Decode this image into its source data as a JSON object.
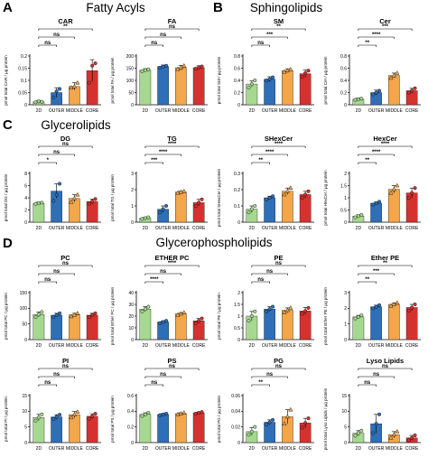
{
  "sections": [
    {
      "letter": "A",
      "title": "Fatty Acyls"
    },
    {
      "letter": "B",
      "title": "Sphingolipids"
    },
    {
      "letter": "C",
      "title": "Glycerolipids"
    },
    {
      "letter": "D",
      "title": "Glycerophospholipids"
    }
  ],
  "colors": {
    "2D": "#a6d98f",
    "OUTER": "#2e6fb7",
    "MIDDLE": "#f4a64a",
    "CORE": "#d5322f"
  },
  "chart_data": [
    {
      "type": "bar",
      "title": "CAR",
      "ylabel": "pmol total CAR / µg protein",
      "categories": [
        "2D",
        "OUTER",
        "MIDDLE",
        "CORE"
      ],
      "values": [
        0.012,
        0.05,
        0.075,
        0.14
      ],
      "errors": [
        0.006,
        0.02,
        0.015,
        0.045
      ],
      "ylim": [
        0,
        0.2
      ],
      "yticks": [
        0,
        0.05,
        0.1,
        0.15,
        0.2
      ],
      "points": [
        [
          0.01,
          0.014,
          0.012
        ],
        [
          0.03,
          0.055,
          0.065
        ],
        [
          0.07,
          0.075,
          0.09
        ],
        [
          0.09,
          0.16,
          0.17
        ]
      ],
      "comparisons": [
        {
          "a": 0,
          "b": 3,
          "label": "**"
        },
        {
          "a": 0,
          "b": 2,
          "label": "ns"
        },
        {
          "a": 0,
          "b": 1,
          "label": "ns"
        }
      ]
    },
    {
      "type": "bar",
      "title": "FA",
      "ylabel": "pmol total FA / µg protein",
      "categories": [
        "2D",
        "OUTER",
        "MIDDLE",
        "CORE"
      ],
      "values": [
        142,
        157,
        152,
        152
      ],
      "errors": [
        6,
        6,
        10,
        8
      ],
      "ylim": [
        0,
        200
      ],
      "yticks": [
        0,
        50,
        100,
        150,
        200
      ],
      "points": [
        [
          138,
          142,
          145
        ],
        [
          152,
          157,
          160
        ],
        [
          146,
          152,
          160
        ],
        [
          148,
          152,
          157
        ]
      ],
      "comparisons": [
        {
          "a": 0,
          "b": 3,
          "label": "ns"
        },
        {
          "a": 0,
          "b": 2,
          "label": "ns"
        },
        {
          "a": 0,
          "b": 1,
          "label": "ns"
        }
      ]
    },
    {
      "type": "bar",
      "title": "SM",
      "ylabel": "pmol total SM / µg protein",
      "categories": [
        "2D",
        "OUTER",
        "MIDDLE",
        "CORE"
      ],
      "values": [
        0.34,
        0.42,
        0.56,
        0.51
      ],
      "errors": [
        0.05,
        0.04,
        0.03,
        0.06
      ],
      "ylim": [
        0,
        0.8
      ],
      "yticks": [
        0,
        0.2,
        0.4,
        0.6,
        0.8
      ],
      "points": [
        [
          0.28,
          0.34,
          0.4
        ],
        [
          0.4,
          0.42,
          0.45
        ],
        [
          0.54,
          0.56,
          0.58
        ],
        [
          0.46,
          0.52,
          0.56
        ]
      ],
      "comparisons": [
        {
          "a": 0,
          "b": 3,
          "label": "**"
        },
        {
          "a": 0,
          "b": 2,
          "label": "***"
        },
        {
          "a": 0,
          "b": 1,
          "label": "ns"
        }
      ]
    },
    {
      "type": "bar",
      "title": "Cer",
      "ylabel": "pmol total Cer / µg protein",
      "categories": [
        "2D",
        "OUTER",
        "MIDDLE",
        "CORE"
      ],
      "values": [
        0.09,
        0.2,
        0.48,
        0.23
      ],
      "errors": [
        0.02,
        0.04,
        0.04,
        0.04
      ],
      "ylim": [
        0,
        0.8
      ],
      "yticks": [
        0,
        0.2,
        0.4,
        0.6,
        0.8
      ],
      "points": [
        [
          0.08,
          0.09,
          0.1
        ],
        [
          0.17,
          0.2,
          0.23
        ],
        [
          0.44,
          0.48,
          0.52
        ],
        [
          0.2,
          0.23,
          0.27
        ]
      ],
      "comparisons": [
        {
          "a": 0,
          "b": 3,
          "label": "***"
        },
        {
          "a": 0,
          "b": 2,
          "label": "****"
        },
        {
          "a": 0,
          "b": 1,
          "label": "**"
        }
      ]
    },
    {
      "type": "bar",
      "title": "DG",
      "ylabel": "pmol total DG / µg protein",
      "categories": [
        "2D",
        "OUTER",
        "MIDDLE",
        "CORE"
      ],
      "values": [
        3.1,
        5.1,
        3.9,
        3.4
      ],
      "errors": [
        0.2,
        1.2,
        0.6,
        0.4
      ],
      "ylim": [
        0,
        8
      ],
      "yticks": [
        0,
        2,
        4,
        6,
        8
      ],
      "points": [
        [
          3.0,
          3.1,
          3.2
        ],
        [
          3.5,
          4.5,
          6.3
        ],
        [
          3.3,
          3.9,
          4.5
        ],
        [
          3.0,
          3.4,
          3.8
        ]
      ],
      "comparisons": [
        {
          "a": 0,
          "b": 3,
          "label": "ns"
        },
        {
          "a": 0,
          "b": 2,
          "label": "ns"
        },
        {
          "a": 0,
          "b": 1,
          "label": "*"
        }
      ]
    },
    {
      "type": "bar",
      "title": "TG",
      "ylabel": "pmol total TG / µg protein",
      "categories": [
        "2D",
        "OUTER",
        "MIDDLE",
        "CORE"
      ],
      "values": [
        0.25,
        0.8,
        1.85,
        1.2
      ],
      "errors": [
        0.05,
        0.2,
        0.05,
        0.2
      ],
      "ylim": [
        0,
        3
      ],
      "yticks": [
        0,
        1,
        2,
        3
      ],
      "points": [
        [
          0.2,
          0.25,
          0.3
        ],
        [
          0.6,
          0.8,
          1.0
        ],
        [
          1.8,
          1.85,
          1.9
        ],
        [
          1.0,
          1.2,
          1.4
        ]
      ],
      "comparisons": [
        {
          "a": 0,
          "b": 3,
          "label": "****"
        },
        {
          "a": 0,
          "b": 2,
          "label": "****"
        },
        {
          "a": 0,
          "b": 1,
          "label": "***"
        }
      ]
    },
    {
      "type": "bar",
      "title": "SHexCer",
      "ylabel": "pmol total SHexCer / µg protein",
      "categories": [
        "2D",
        "OUTER",
        "MIDDLE",
        "CORE"
      ],
      "values": [
        0.08,
        0.15,
        0.19,
        0.17
      ],
      "errors": [
        0.02,
        0.01,
        0.02,
        0.02
      ],
      "ylim": [
        0,
        0.3
      ],
      "yticks": [
        0,
        0.1,
        0.2,
        0.3
      ],
      "points": [
        [
          0.06,
          0.08,
          0.1
        ],
        [
          0.14,
          0.15,
          0.16
        ],
        [
          0.17,
          0.19,
          0.21
        ],
        [
          0.15,
          0.17,
          0.19
        ]
      ],
      "comparisons": [
        {
          "a": 0,
          "b": 3,
          "label": "****"
        },
        {
          "a": 0,
          "b": 2,
          "label": "****"
        },
        {
          "a": 0,
          "b": 1,
          "label": "**"
        }
      ]
    },
    {
      "type": "bar",
      "title": "HexCer",
      "ylabel": "pmol total HexCer / µg protein",
      "categories": [
        "2D",
        "OUTER",
        "MIDDLE",
        "CORE"
      ],
      "values": [
        0.25,
        0.78,
        1.35,
        1.2
      ],
      "errors": [
        0.05,
        0.05,
        0.15,
        0.2
      ],
      "ylim": [
        0,
        2
      ],
      "yticks": [
        0,
        0.5,
        1,
        1.5,
        2
      ],
      "points": [
        [
          0.2,
          0.25,
          0.3
        ],
        [
          0.72,
          0.78,
          0.84
        ],
        [
          1.2,
          1.35,
          1.5
        ],
        [
          1.0,
          1.2,
          1.4
        ]
      ],
      "comparisons": [
        {
          "a": 0,
          "b": 3,
          "label": "****"
        },
        {
          "a": 0,
          "b": 2,
          "label": "****"
        },
        {
          "a": 0,
          "b": 1,
          "label": "**"
        }
      ]
    },
    {
      "type": "bar",
      "title": "PC",
      "ylabel": "pmol total PC / µg protein",
      "categories": [
        "2D",
        "OUTER",
        "MIDDLE",
        "CORE"
      ],
      "values": [
        80,
        78,
        79,
        78
      ],
      "errors": [
        8,
        6,
        5,
        6
      ],
      "ylim": [
        0,
        150
      ],
      "yticks": [
        0,
        50,
        100,
        150
      ],
      "points": [
        [
          72,
          80,
          88
        ],
        [
          72,
          78,
          84
        ],
        [
          74,
          79,
          84
        ],
        [
          72,
          78,
          84
        ]
      ],
      "comparisons": [
        {
          "a": 0,
          "b": 3,
          "label": "ns"
        },
        {
          "a": 0,
          "b": 2,
          "label": "ns"
        },
        {
          "a": 0,
          "b": 1,
          "label": "ns"
        }
      ]
    },
    {
      "type": "bar",
      "title": "ETHER PC",
      "ylabel": "pmol total Ether PC / µg protein",
      "categories": [
        "2D",
        "OUTER",
        "MIDDLE",
        "CORE"
      ],
      "values": [
        26,
        15,
        22,
        16
      ],
      "errors": [
        2,
        1,
        1,
        2
      ],
      "ylim": [
        0,
        40
      ],
      "yticks": [
        0,
        10,
        20,
        30,
        40
      ],
      "points": [
        [
          24,
          26,
          28
        ],
        [
          14,
          15,
          16
        ],
        [
          21,
          22,
          23
        ],
        [
          14,
          16,
          18
        ]
      ],
      "comparisons": [
        {
          "a": 0,
          "b": 3,
          "label": "****"
        },
        {
          "a": 0,
          "b": 2,
          "label": "ns"
        },
        {
          "a": 0,
          "b": 1,
          "label": "****"
        }
      ]
    },
    {
      "type": "bar",
      "title": "PE",
      "ylabel": "pmol total PE / µg protein",
      "categories": [
        "2D",
        "OUTER",
        "MIDDLE",
        "CORE"
      ],
      "values": [
        1.0,
        1.3,
        1.25,
        1.22
      ],
      "errors": [
        0.2,
        0.1,
        0.1,
        0.15
      ],
      "ylim": [
        0,
        2
      ],
      "yticks": [
        0,
        0.5,
        1,
        1.5,
        2
      ],
      "points": [
        [
          0.8,
          1.0,
          1.2
        ],
        [
          1.2,
          1.3,
          1.4
        ],
        [
          1.15,
          1.25,
          1.35
        ],
        [
          1.1,
          1.22,
          1.35
        ]
      ],
      "comparisons": [
        {
          "a": 0,
          "b": 3,
          "label": "ns"
        },
        {
          "a": 0,
          "b": 2,
          "label": "ns"
        },
        {
          "a": 0,
          "b": 1,
          "label": "ns"
        }
      ]
    },
    {
      "type": "bar",
      "title": "Ether PE",
      "ylabel": "pmol total Ether PE / µg protein",
      "categories": [
        "2D",
        "OUTER",
        "MIDDLE",
        "CORE"
      ],
      "values": [
        1.45,
        2.1,
        2.25,
        2.05
      ],
      "errors": [
        0.1,
        0.1,
        0.1,
        0.2
      ],
      "ylim": [
        0,
        3
      ],
      "yticks": [
        0,
        1,
        2,
        3
      ],
      "points": [
        [
          1.35,
          1.45,
          1.55
        ],
        [
          2.0,
          2.1,
          2.2
        ],
        [
          2.15,
          2.25,
          2.35
        ],
        [
          1.85,
          2.05,
          2.25
        ]
      ],
      "comparisons": [
        {
          "a": 0,
          "b": 3,
          "label": "**"
        },
        {
          "a": 0,
          "b": 2,
          "label": "***"
        },
        {
          "a": 0,
          "b": 1,
          "label": "**"
        }
      ]
    },
    {
      "type": "bar",
      "title": "PI",
      "ylabel": "pmol total PI / µg protein",
      "categories": [
        "2D",
        "OUTER",
        "MIDDLE",
        "CORE"
      ],
      "values": [
        8,
        8.2,
        8.9,
        8.4
      ],
      "errors": [
        1,
        0.7,
        1,
        0.8
      ],
      "ylim": [
        0,
        15
      ],
      "yticks": [
        0,
        5,
        10,
        15
      ],
      "points": [
        [
          7,
          8,
          9
        ],
        [
          7.5,
          8.2,
          8.9
        ],
        [
          8,
          8.9,
          9.8
        ],
        [
          7.6,
          8.4,
          9.2
        ]
      ],
      "comparisons": [
        {
          "a": 0,
          "b": 3,
          "label": "ns"
        },
        {
          "a": 0,
          "b": 2,
          "label": "ns"
        },
        {
          "a": 0,
          "b": 1,
          "label": "ns"
        }
      ]
    },
    {
      "type": "bar",
      "title": "PS",
      "ylabel": "pmol total PS / µg protein",
      "categories": [
        "2D",
        "OUTER",
        "MIDDLE",
        "CORE"
      ],
      "values": [
        0.36,
        0.36,
        0.37,
        0.38
      ],
      "errors": [
        0.02,
        0.01,
        0.01,
        0.01
      ],
      "ylim": [
        0,
        0.6
      ],
      "yticks": [
        0,
        0.2,
        0.4,
        0.6
      ],
      "points": [
        [
          0.34,
          0.36,
          0.38
        ],
        [
          0.35,
          0.36,
          0.37
        ],
        [
          0.36,
          0.37,
          0.38
        ],
        [
          0.37,
          0.38,
          0.39
        ]
      ],
      "comparisons": [
        {
          "a": 0,
          "b": 3,
          "label": "ns"
        },
        {
          "a": 0,
          "b": 2,
          "label": "ns"
        },
        {
          "a": 0,
          "b": 1,
          "label": "ns"
        }
      ]
    },
    {
      "type": "bar",
      "title": "PG",
      "ylabel": "pmol total PG / µg protein",
      "categories": [
        "2D",
        "OUTER",
        "MIDDLE",
        "CORE"
      ],
      "values": [
        0.014,
        0.026,
        0.033,
        0.025
      ],
      "errors": [
        0.005,
        0.003,
        0.009,
        0.006
      ],
      "ylim": [
        0,
        0.06
      ],
      "yticks": [
        0,
        0.02,
        0.04,
        0.06
      ],
      "points": [
        [
          0.01,
          0.014,
          0.02
        ],
        [
          0.023,
          0.026,
          0.029
        ],
        [
          0.024,
          0.033,
          0.042
        ],
        [
          0.019,
          0.025,
          0.031
        ]
      ],
      "comparisons": [
        {
          "a": 0,
          "b": 3,
          "label": "ns"
        },
        {
          "a": 0,
          "b": 2,
          "label": "ns"
        },
        {
          "a": 0,
          "b": 1,
          "label": "**"
        }
      ]
    },
    {
      "type": "bar",
      "title": "Lyso Lipids",
      "ylabel": "pmol total Lyso Lipids / µg protein",
      "categories": [
        "2D",
        "OUTER",
        "MIDDLE",
        "CORE"
      ],
      "values": [
        3,
        6,
        2.5,
        1.5
      ],
      "errors": [
        0.8,
        3,
        1,
        0.8
      ],
      "ylim": [
        0,
        15
      ],
      "yticks": [
        0,
        5,
        10,
        15
      ],
      "points": [
        [
          2.2,
          3,
          3.8
        ],
        [
          3,
          6,
          9
        ],
        [
          1.5,
          2.5,
          3.5
        ],
        [
          0.7,
          1.5,
          2.3
        ]
      ],
      "comparisons": [
        {
          "a": 0,
          "b": 3,
          "label": "ns"
        },
        {
          "a": 0,
          "b": 2,
          "label": "ns"
        },
        {
          "a": 0,
          "b": 1,
          "label": "ns"
        }
      ]
    }
  ]
}
